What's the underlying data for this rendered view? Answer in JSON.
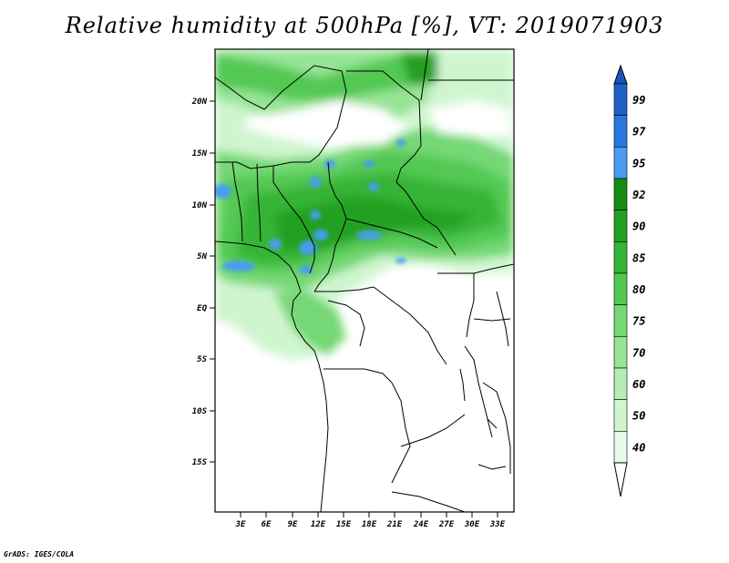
{
  "title": "Relative humidity at 500hPa [%], VT: 2019071903",
  "credit": "GrADS: IGES/COLA",
  "map": {
    "variable": "Relative humidity",
    "level": "500hPa",
    "units": "%",
    "valid_time": "2019071903",
    "lat_ticks": [
      "20N",
      "15N",
      "10N",
      "5N",
      "EQ",
      "5S",
      "10S",
      "15S"
    ],
    "lon_ticks": [
      "3E",
      "6E",
      "9E",
      "12E",
      "15E",
      "18E",
      "21E",
      "24E",
      "27E",
      "30E",
      "33E"
    ]
  },
  "colorbar": {
    "levels": [
      "99",
      "97",
      "95",
      "92",
      "90",
      "85",
      "80",
      "75",
      "70",
      "60",
      "50",
      "40"
    ],
    "colors": [
      "#1f61c9",
      "#2a76e0",
      "#4a9cf0",
      "#148c14",
      "#22a022",
      "#35b435",
      "#52c852",
      "#74d874",
      "#96e496",
      "#b4eeb4",
      "#cff5cf",
      "#e8fbe8"
    ],
    "top_arrow_color": "#1a54b8",
    "bottom_arrow_color": "#ffffff"
  }
}
